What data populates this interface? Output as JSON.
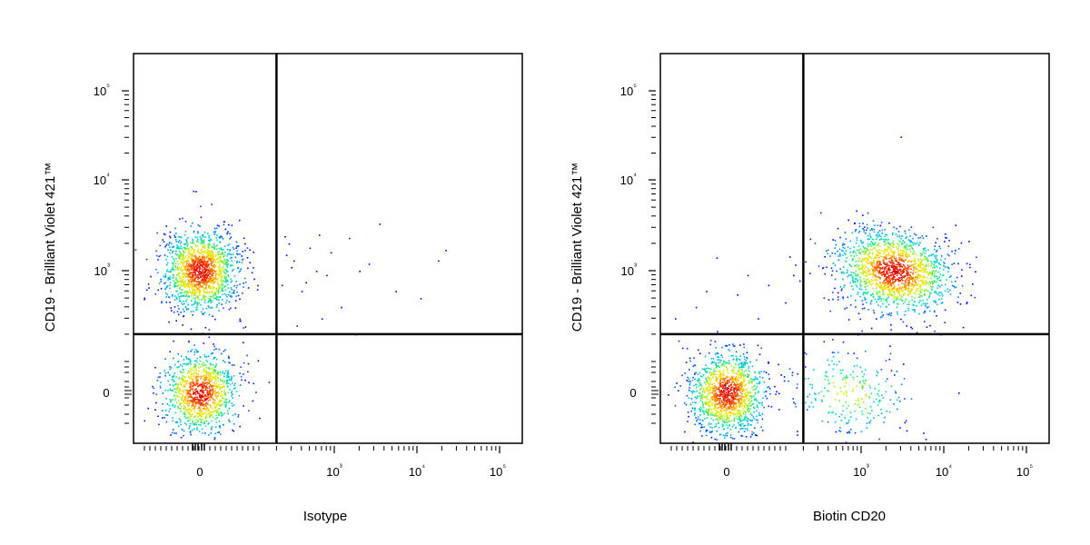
{
  "chart_data": [
    {
      "type": "scatter",
      "subtype": "flow-cytometry-pseudocolor-dot-plot",
      "xlabel": "Isotype",
      "ylabel": "CD19 - Brilliant Violet 421™",
      "x_scale": "biexponential",
      "y_scale": "biexponential",
      "x_ticks": [
        "0",
        "10³",
        "10⁴",
        "10⁵"
      ],
      "y_ticks": [
        "0",
        "10³",
        "10⁴",
        "10⁵"
      ],
      "quadrant_gate": {
        "x": 200,
        "y": 200
      },
      "populations": [
        {
          "x": 0,
          "y": 1000,
          "events": 1500
        },
        {
          "x": 0,
          "y": 0,
          "events": 1100
        }
      ],
      "sparse_points": [
        [
          250,
          2400
        ],
        [
          320,
          1300
        ],
        [
          500,
          1800
        ],
        [
          650,
          2500
        ],
        [
          400,
          600
        ],
        [
          1500,
          2300
        ],
        [
          3500,
          3300
        ],
        [
          22000,
          1700
        ],
        [
          18000,
          1300
        ],
        [
          5500,
          600
        ],
        [
          11000,
          500
        ],
        [
          800,
          900
        ],
        [
          350,
          250
        ],
        [
          600,
          1000
        ],
        [
          260,
          1500
        ],
        [
          300,
          1100
        ],
        [
          1800,
          200
        ],
        [
          1200,
          400
        ],
        [
          2000,
          1000
        ],
        [
          700,
          300
        ],
        [
          450,
          750
        ],
        [
          230,
          700
        ],
        [
          280,
          2000
        ],
        [
          900,
          1600
        ],
        [
          2600,
          1200
        ]
      ],
      "colormap": [
        "#0000ff",
        "#00b4ff",
        "#00e5a0",
        "#c8f000",
        "#ffe000",
        "#ff6000",
        "#e00000"
      ]
    },
    {
      "type": "scatter",
      "subtype": "flow-cytometry-pseudocolor-dot-plot",
      "xlabel": "Biotin CD20",
      "ylabel": "CD19 - Brilliant Violet 421™",
      "x_scale": "biexponential",
      "y_scale": "biexponential",
      "x_ticks": [
        "0",
        "10³",
        "10⁴",
        "10⁵"
      ],
      "y_ticks": [
        "0",
        "10³",
        "10⁴",
        "10⁵"
      ],
      "quadrant_gate": {
        "x": 200,
        "y": 200
      },
      "populations": [
        {
          "x": 2500,
          "y": 1000,
          "events": 1600
        },
        {
          "x": 0,
          "y": 0,
          "events": 1300
        },
        {
          "x": 700,
          "y": 0,
          "events": 250
        }
      ],
      "sparse_points": [
        [
          3000,
          30000
        ],
        [
          -40,
          600
        ],
        [
          -60,
          400
        ],
        [
          40,
          900
        ],
        [
          80,
          700
        ],
        [
          -100,
          300
        ],
        [
          120,
          450
        ],
        [
          60,
          300
        ],
        [
          20,
          550
        ],
        [
          -20,
          1400
        ],
        [
          15000,
          0
        ],
        [
          6000,
          -150
        ],
        [
          9000,
          200
        ],
        [
          150,
          900
        ],
        [
          1500,
          300
        ],
        [
          3500,
          250
        ],
        [
          2200,
          150
        ],
        [
          900,
          200
        ]
      ],
      "colormap": [
        "#0000ff",
        "#00b4ff",
        "#00e5a0",
        "#c8f000",
        "#ffe000",
        "#ff6000",
        "#e00000"
      ]
    }
  ]
}
